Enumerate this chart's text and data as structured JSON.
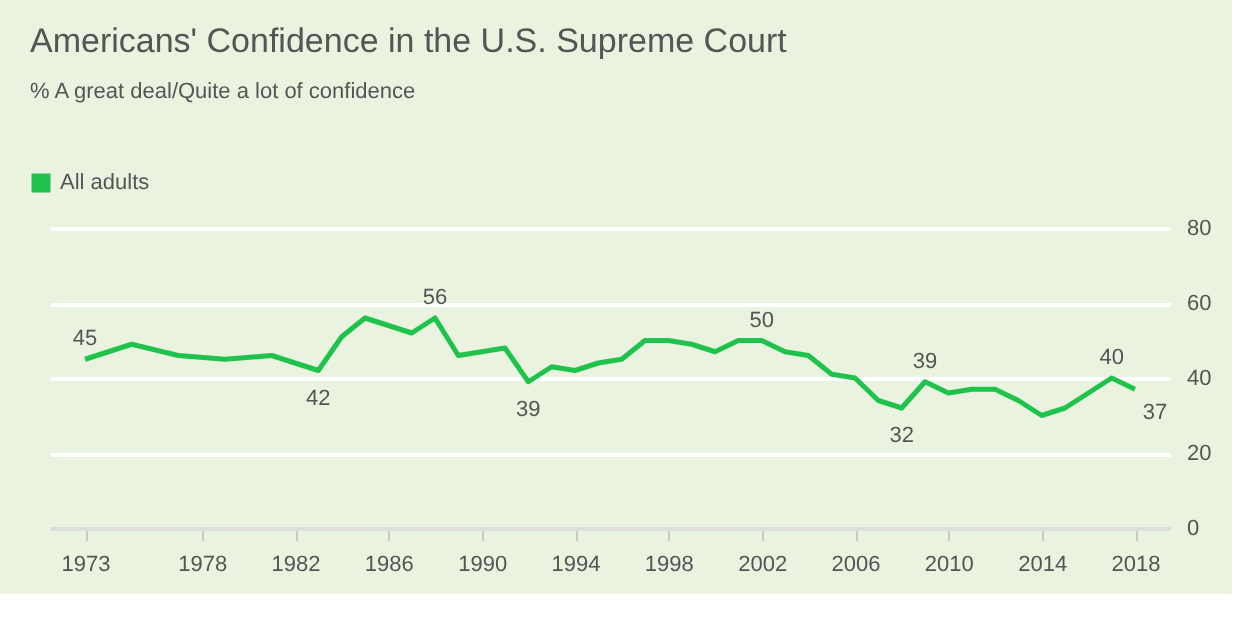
{
  "chart_data": {
    "type": "line",
    "title": "Americans' Confidence in the U.S. Supreme Court",
    "subtitle": "% A great deal/Quite a lot of confidence",
    "x": [
      1973,
      1975,
      1977,
      1979,
      1981,
      1983,
      1984,
      1985,
      1986,
      1987,
      1988,
      1989,
      1990,
      1991,
      1992,
      1993,
      1994,
      1995,
      1996,
      1997,
      1998,
      1999,
      2000,
      2001,
      2002,
      2003,
      2004,
      2005,
      2006,
      2007,
      2008,
      2009,
      2010,
      2011,
      2012,
      2013,
      2014,
      2015,
      2016,
      2017,
      2018
    ],
    "series": [
      {
        "name": "All adults",
        "color": "#1fc24a",
        "values": [
          45,
          49,
          46,
          45,
          46,
          42,
          51,
          56,
          54,
          52,
          56,
          46,
          47,
          48,
          39,
          43,
          42,
          44,
          45,
          50,
          50,
          49,
          47,
          50,
          50,
          47,
          46,
          41,
          40,
          34,
          32,
          39,
          36,
          37,
          37,
          34,
          30,
          32,
          36,
          40,
          37
        ]
      }
    ],
    "annotations": [
      {
        "text": "45",
        "x": 1973,
        "y": 45
      },
      {
        "text": "42",
        "x": 1983,
        "y": 42
      },
      {
        "text": "56",
        "x": 1988,
        "y": 56
      },
      {
        "text": "39",
        "x": 1992,
        "y": 39
      },
      {
        "text": "50",
        "x": 2002,
        "y": 50
      },
      {
        "text": "32",
        "x": 2008,
        "y": 32
      },
      {
        "text": "39",
        "x": 2009,
        "y": 39
      },
      {
        "text": "40",
        "x": 2017,
        "y": 40
      },
      {
        "text": "37",
        "x": 2018,
        "y": 37
      }
    ],
    "xlim": [
      1971.5,
      2019.5
    ],
    "xticks": [
      1973,
      1978,
      1982,
      1986,
      1990,
      1994,
      1998,
      2002,
      2006,
      2010,
      2014,
      2018
    ],
    "ylim": [
      0,
      80
    ],
    "yticks": [
      0,
      20,
      40,
      60,
      80
    ],
    "grid": "y",
    "legend": "top left",
    "marker": "none",
    "line_style": "solid"
  }
}
